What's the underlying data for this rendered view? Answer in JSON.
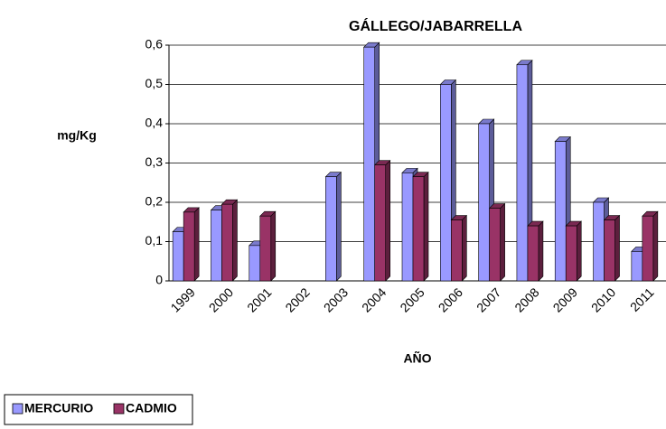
{
  "chart_data": {
    "type": "bar3d",
    "title": "GÁLLEGO/JABARRELLA",
    "ylabel": "mg/Kg",
    "xlabel": "AÑO",
    "categories": [
      "1999",
      "2000",
      "2001",
      "2002",
      "2003",
      "2004",
      "2005",
      "2006",
      "2007",
      "2008",
      "2009",
      "2010",
      "2011"
    ],
    "series": [
      {
        "name": "MERCURIO",
        "color": "#9999ff",
        "values": [
          0.125,
          0.18,
          0.09,
          null,
          0.265,
          0.595,
          0.275,
          0.5,
          0.4,
          0.55,
          0.355,
          0.2,
          0.075
        ]
      },
      {
        "name": "CADMIO",
        "color": "#993366",
        "values": [
          0.175,
          0.195,
          0.165,
          null,
          null,
          0.295,
          0.265,
          0.155,
          0.185,
          0.14,
          0.14,
          0.155,
          0.165
        ]
      }
    ],
    "ylim": [
      0,
      0.6
    ],
    "yticks": [
      0,
      {
        "value": 0.1,
        "label": "0,1"
      },
      {
        "value": 0.2,
        "label": "0,2"
      },
      {
        "value": 0.3,
        "label": "0,3"
      },
      {
        "value": 0.4,
        "label": "0,4"
      },
      {
        "value": 0.5,
        "label": "0,5"
      },
      {
        "value": 0.6,
        "label": "0,6"
      }
    ],
    "grid": true,
    "legend": "bottom-left"
  }
}
